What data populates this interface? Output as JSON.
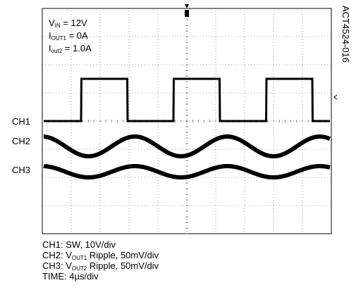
{
  "chart_data": {
    "type": "line",
    "title": "",
    "figure_id": "ACT4524-016",
    "conditions": {
      "vin": {
        "main": "V",
        "sub": "IN",
        "rest": " = 12V"
      },
      "iout1": {
        "main": "I",
        "sub": "OUT1",
        "rest": " = 0A"
      },
      "iout2": {
        "main": "I",
        "sub": "out2",
        "rest": " = 1.0A"
      }
    },
    "channel_labels": [
      "CH1",
      "CH2",
      "CH3"
    ],
    "captions": {
      "ch1": {
        "text": "CH1: SW, 10V/div"
      },
      "ch2": {
        "pre": "CH2: V",
        "sub": "OUT1",
        "post": " Ripple, 50mV/div"
      },
      "ch3": {
        "pre": "CH3: V",
        "sub": "OUT2",
        "post": " Ripple, 50mV/div"
      },
      "time": {
        "text": "TIME: 4µs/div"
      }
    },
    "grid": true,
    "divisions": {
      "x": 10,
      "y": 8
    },
    "time_per_div_us": 4,
    "series": [
      {
        "name": "CH1",
        "kind": "square",
        "period_us": 12.8,
        "duty": 0.5,
        "high_div": 1.5,
        "low_div": 0,
        "offset_div": 0
      },
      {
        "name": "CH2",
        "kind": "sine",
        "period_us": 12.8,
        "amplitude_div": 0.35,
        "offset_div": -0.9
      },
      {
        "name": "CH3",
        "kind": "sine",
        "period_us": 12.8,
        "amplitude_div": 0.2,
        "offset_div": -1.8
      }
    ]
  }
}
